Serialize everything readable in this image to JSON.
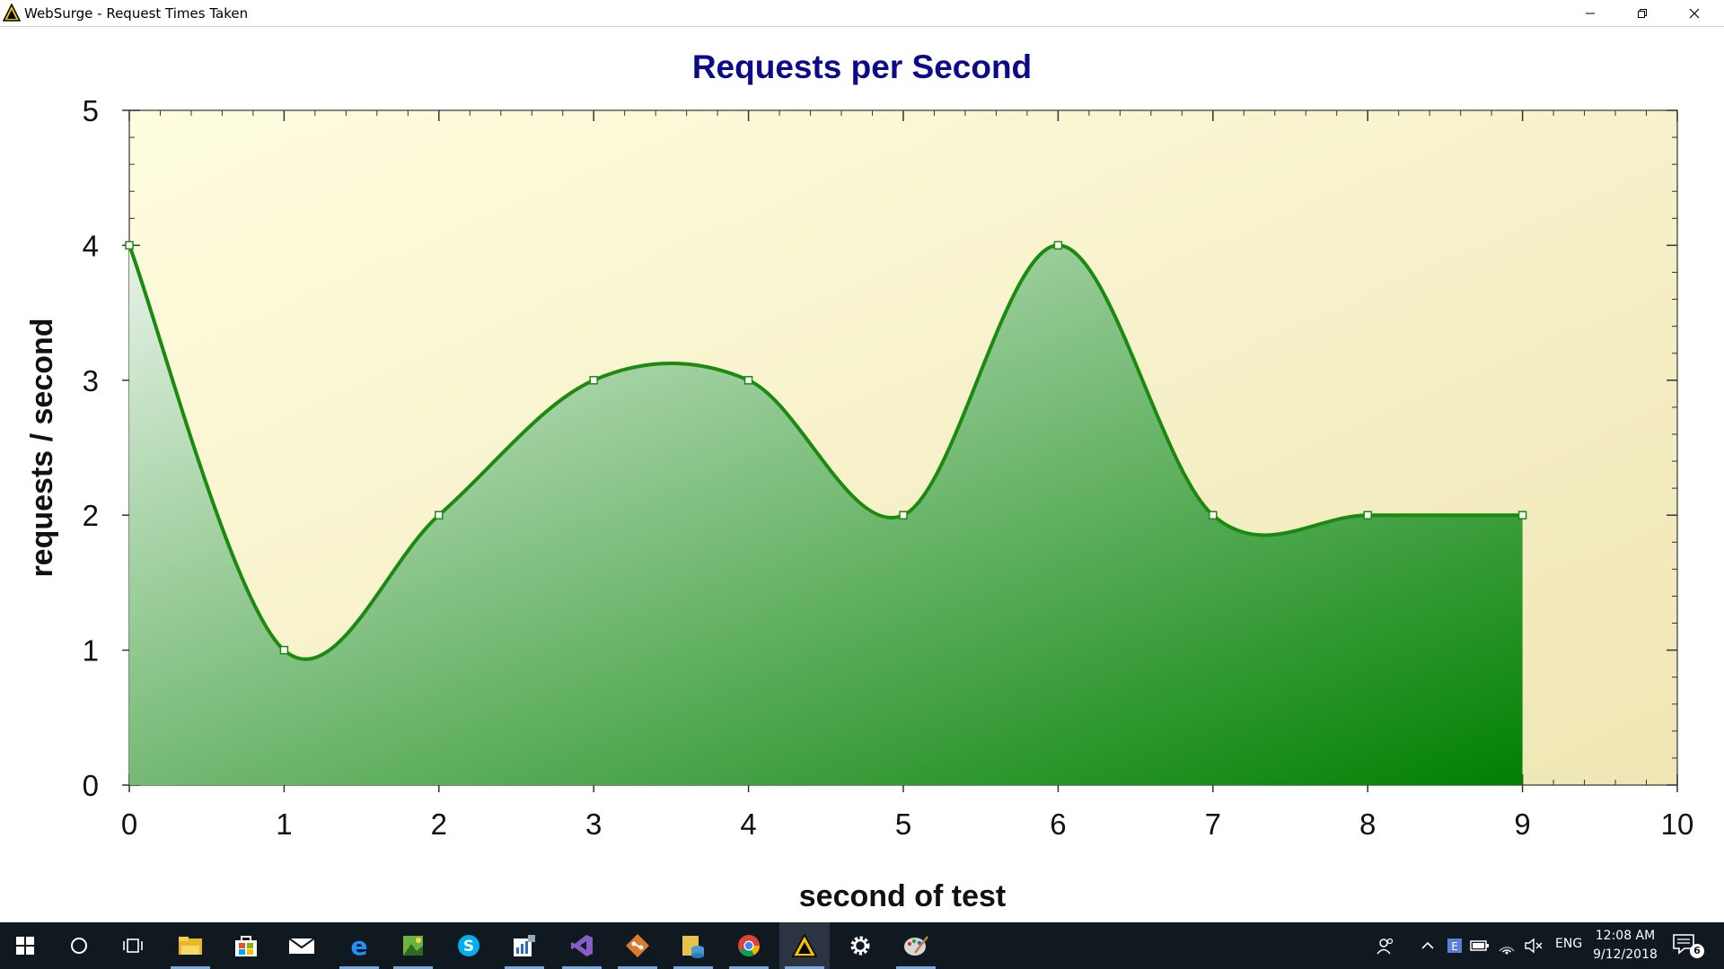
{
  "window": {
    "title": "WebSurge - Request Times Taken",
    "buttons": {
      "minimize": "minimize-icon",
      "maximize": "restore-icon",
      "close": "close-icon"
    }
  },
  "colors": {
    "title": "#0a0a8a",
    "line": "#1a8a10",
    "fill_light": "#e8f3e8",
    "fill_dark": "#008000",
    "plot_bg_light": "#fffde0",
    "plot_bg_dark": "#efe6b4"
  },
  "chart_data": {
    "type": "area",
    "title": "Requests per Second",
    "xlabel": "second of test",
    "ylabel": "requests / second",
    "x": [
      0,
      1,
      2,
      3,
      4,
      5,
      6,
      7,
      8,
      9
    ],
    "values": [
      4,
      1,
      2,
      3,
      3,
      2,
      4,
      2,
      2,
      2
    ],
    "xlim": [
      0,
      10
    ],
    "ylim": [
      0,
      5
    ],
    "xticks": [
      "0",
      "1",
      "2",
      "3",
      "4",
      "5",
      "6",
      "7",
      "8",
      "9",
      "10"
    ],
    "yticks": [
      "0",
      "1",
      "2",
      "3",
      "4",
      "5"
    ],
    "smooth": true,
    "markers": true,
    "grid": false,
    "legend": "none"
  },
  "taskbar": {
    "apps": [
      {
        "name": "start-icon"
      },
      {
        "name": "search-icon"
      },
      {
        "name": "task-view-icon"
      },
      {
        "name": "file-explorer-icon"
      },
      {
        "name": "store-icon"
      },
      {
        "name": "mail-icon"
      },
      {
        "name": "edge-icon"
      },
      {
        "name": "image-editor-icon"
      },
      {
        "name": "skype-icon"
      },
      {
        "name": "resource-monitor-icon"
      },
      {
        "name": "visual-studio-icon"
      },
      {
        "name": "git-icon"
      },
      {
        "name": "database-tool-icon"
      },
      {
        "name": "chrome-icon"
      },
      {
        "name": "websurge-icon"
      },
      {
        "name": "settings-icon"
      },
      {
        "name": "paint-icon"
      }
    ],
    "tray": {
      "language": "ENG",
      "time": "12:08 AM",
      "date": "9/12/2018",
      "notifications": "6"
    }
  }
}
